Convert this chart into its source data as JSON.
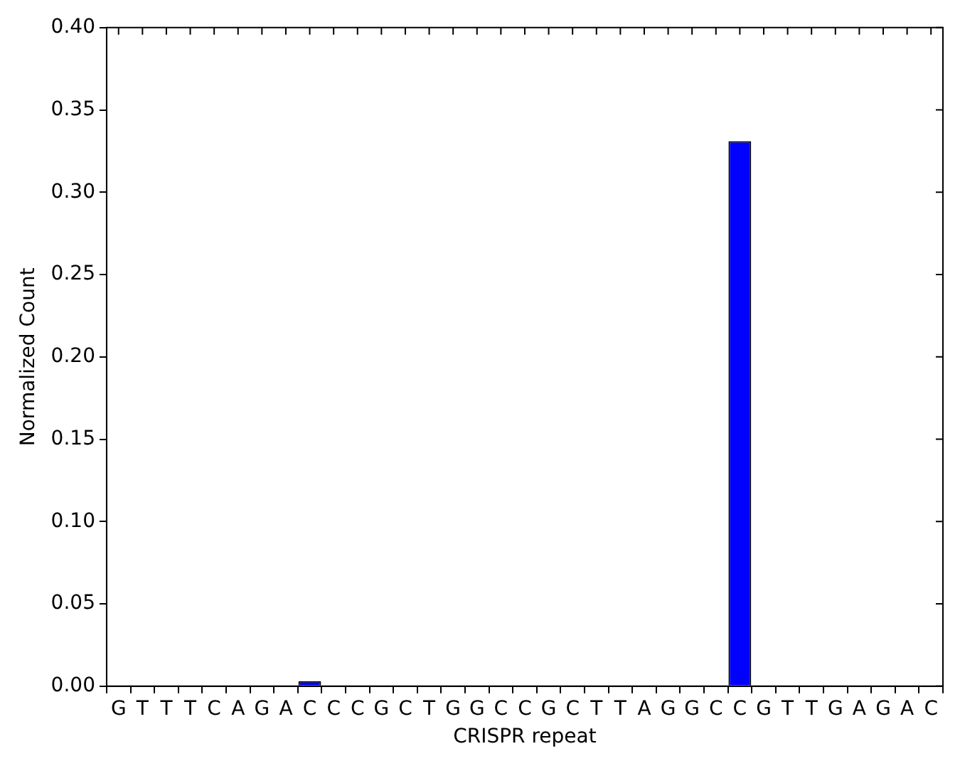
{
  "chart_data": {
    "type": "bar",
    "xlabel": "CRISPR repeat",
    "ylabel": "Normalized Count",
    "categories": [
      "G",
      "T",
      "T",
      "T",
      "C",
      "A",
      "G",
      "A",
      "C",
      "C",
      "C",
      "G",
      "C",
      "T",
      "G",
      "G",
      "C",
      "C",
      "G",
      "C",
      "T",
      "T",
      "A",
      "G",
      "G",
      "C",
      "C",
      "G",
      "T",
      "T",
      "G",
      "A",
      "G",
      "A",
      "C"
    ],
    "values": [
      0,
      0,
      0,
      0,
      0,
      0,
      0,
      0,
      0.003,
      0,
      0,
      0,
      0,
      0,
      0,
      0,
      0,
      0,
      0,
      0,
      0,
      0,
      0,
      0,
      0,
      0,
      0.331,
      0,
      0,
      0,
      0,
      0,
      0,
      0,
      0
    ],
    "color": "#0000ff",
    "ylim": [
      0,
      0.4
    ],
    "yticks": [
      {
        "value": 0,
        "label": "0.00"
      },
      {
        "value": 0.05,
        "label": "0.05"
      },
      {
        "value": 0.1,
        "label": "0.10"
      },
      {
        "value": 0.15,
        "label": "0.15"
      },
      {
        "value": 0.2,
        "label": "0.20"
      },
      {
        "value": 0.25,
        "label": "0.25"
      },
      {
        "value": 0.3,
        "label": "0.30"
      },
      {
        "value": 0.35,
        "label": "0.35"
      },
      {
        "value": 0.4,
        "label": "0.40"
      }
    ],
    "grid": false,
    "legend": false
  }
}
